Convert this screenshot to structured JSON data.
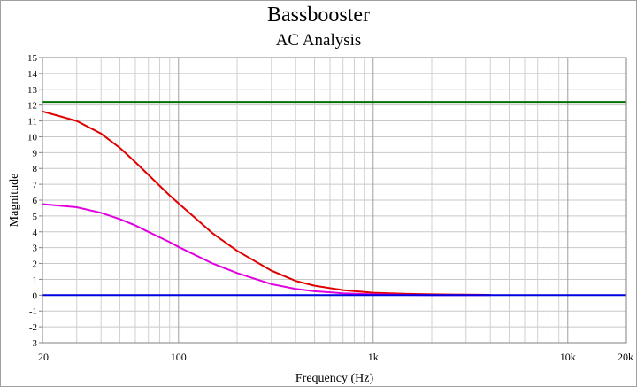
{
  "chart_data": {
    "type": "line",
    "title": "Bassbooster",
    "subtitle": "AC Analysis",
    "xlabel": "Frequency (Hz)",
    "ylabel": "Magnitude",
    "xscale": "log",
    "xlim": [
      20,
      20000
    ],
    "ylim": [
      -3,
      15
    ],
    "grid": true,
    "x_ticks": [
      20,
      100,
      1000,
      10000,
      20000
    ],
    "x_tick_labels": [
      "20",
      "100",
      "1k",
      "10k",
      "20k"
    ],
    "y_ticks": [
      -3,
      -2,
      -1,
      0,
      1,
      2,
      3,
      4,
      5,
      6,
      7,
      8,
      9,
      10,
      11,
      12,
      13,
      14,
      15
    ],
    "y_tick_labels": [
      "-3",
      "-2",
      "-1",
      "0",
      "1",
      "2",
      "3",
      "4",
      "5",
      "6",
      "7",
      "8",
      "9",
      "10",
      "11",
      "12",
      "13",
      "14",
      "15"
    ],
    "series": [
      {
        "color": "#007000",
        "x": [
          20,
          20000
        ],
        "y": [
          12.2,
          12.2
        ]
      },
      {
        "color": "#e00000",
        "x": [
          20,
          30,
          40,
          50,
          60,
          70,
          80,
          90,
          100,
          150,
          200,
          300,
          400,
          500,
          700,
          1000,
          1500,
          2000,
          3000,
          4000
        ],
        "y": [
          11.6,
          11.0,
          10.2,
          9.3,
          8.4,
          7.6,
          6.9,
          6.3,
          5.8,
          3.9,
          2.8,
          1.55,
          0.9,
          0.6,
          0.32,
          0.15,
          0.08,
          0.05,
          0.03,
          0.02
        ]
      },
      {
        "color": "#e000e0",
        "x": [
          20,
          30,
          40,
          50,
          60,
          70,
          80,
          90,
          100,
          150,
          200,
          300,
          400,
          500,
          700,
          1000,
          1500,
          2000,
          3000,
          4000
        ],
        "y": [
          5.75,
          5.55,
          5.2,
          4.8,
          4.4,
          4.0,
          3.65,
          3.35,
          3.05,
          2.0,
          1.4,
          0.7,
          0.4,
          0.25,
          0.12,
          0.05,
          0.02,
          0.01,
          0.0,
          0.0
        ]
      },
      {
        "color": "#0000e0",
        "x": [
          20,
          20000
        ],
        "y": [
          0,
          0
        ]
      }
    ]
  }
}
